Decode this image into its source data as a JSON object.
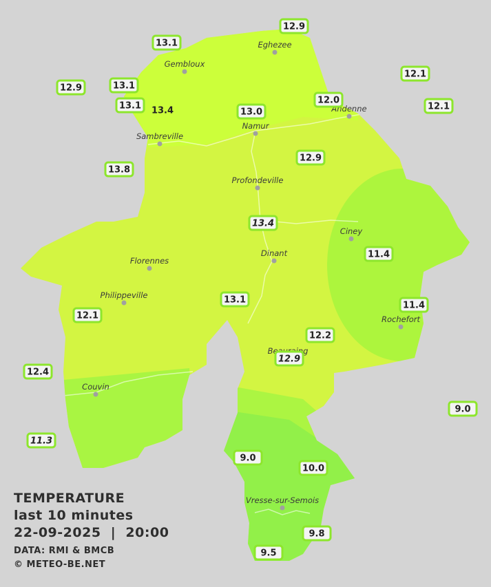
{
  "legend": {
    "title": "TEMPERATURE",
    "period": "last 10 minutes",
    "datetime": "22-09-2025  |  20:00",
    "source": "DATA: RMI & BMCB",
    "copyright": "© METEO-BE.NET"
  },
  "cities": [
    "Eghezee",
    "Gembloux",
    "Andenne",
    "Namur",
    "Sambreville",
    "Profondeville",
    "Ciney",
    "Dinant",
    "Florennes",
    "Philippeville",
    "Rochefort",
    "Beauraing",
    "Couvin",
    "Vresse-sur-Semois"
  ],
  "stations": [
    "12.9",
    "13.1",
    "12.1",
    "12.9",
    "13.1",
    "12.0",
    "12.1",
    "13.1",
    "13.4",
    "13.0",
    "12.9",
    "13.8",
    "13.4",
    "11.4",
    "13.1",
    "11.4",
    "12.1",
    "12.2",
    "12.9",
    "12.4",
    "9.0",
    "11.3",
    "9.0",
    "10.0",
    "9.8",
    "9.5"
  ]
}
